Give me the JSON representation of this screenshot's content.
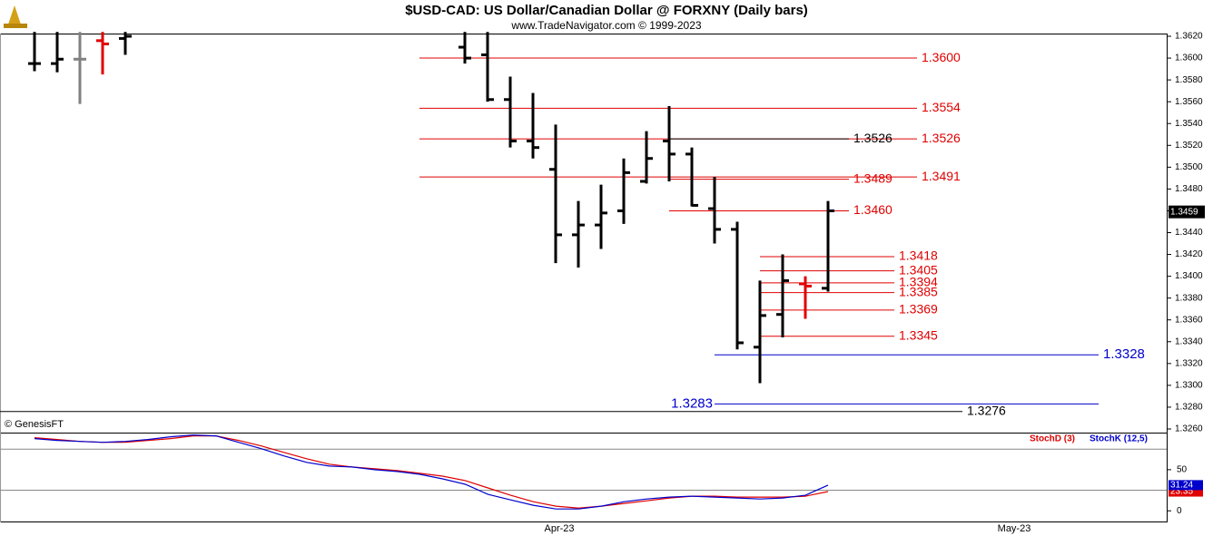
{
  "chart_data": [
    {
      "type": "ohlc",
      "title": "$USD-CAD:  US Dollar/Canadian Dollar @ FORXNY  (Daily bars)",
      "subtitle": "www.TradeNavigator.com © 1999-2023",
      "credit": "© GenesisFT",
      "ylim": [
        1.3257,
        1.3622
      ],
      "yticks": [
        {
          "value": 1.326,
          "label": "1.3260"
        },
        {
          "value": 1.328,
          "label": "1.3280"
        },
        {
          "value": 1.33,
          "label": "1.3300"
        },
        {
          "value": 1.332,
          "label": "1.3320"
        },
        {
          "value": 1.334,
          "label": "1.3340"
        },
        {
          "value": 1.336,
          "label": "1.3360"
        },
        {
          "value": 1.338,
          "label": "1.3380"
        },
        {
          "value": 1.34,
          "label": "1.3400"
        },
        {
          "value": 1.342,
          "label": "1.3420"
        },
        {
          "value": 1.344,
          "label": "1.3440"
        },
        {
          "value": 1.346,
          "label": "1.3460"
        },
        {
          "value": 1.348,
          "label": "1.3480"
        },
        {
          "value": 1.35,
          "label": "1.3500"
        },
        {
          "value": 1.352,
          "label": "1.3520"
        },
        {
          "value": 1.354,
          "label": "1.3540"
        },
        {
          "value": 1.356,
          "label": "1.3560"
        },
        {
          "value": 1.358,
          "label": "1.3580"
        },
        {
          "value": 1.36,
          "label": "1.3600"
        },
        {
          "value": 1.362,
          "label": "1.3620"
        }
      ],
      "last_price": 1.3459,
      "bars": [
        {
          "o": 1.3595,
          "h": 1.3624,
          "l": 1.3588,
          "c": 1.3595,
          "color": "#000000"
        },
        {
          "o": 1.3595,
          "h": 1.3624,
          "l": 1.3587,
          "c": 1.3599,
          "color": "#000000"
        },
        {
          "o": 1.3599,
          "h": 1.3624,
          "l": 1.3558,
          "c": 1.3599,
          "color": "#808080"
        },
        {
          "o": 1.3616,
          "h": 1.3624,
          "l": 1.3585,
          "c": 1.3613,
          "color": "#e00000"
        },
        {
          "o": 1.3618,
          "h": 1.3624,
          "l": 1.3603,
          "c": 1.362,
          "color": "#000000"
        },
        {
          "o": 1.361,
          "h": 1.3624,
          "l": 1.3595,
          "c": 1.36,
          "color": "#000000"
        },
        {
          "o": 1.3603,
          "h": 1.3624,
          "l": 1.356,
          "c": 1.3562,
          "color": "#000000"
        },
        {
          "o": 1.3562,
          "h": 1.3583,
          "l": 1.3518,
          "c": 1.3524,
          "color": "#000000"
        },
        {
          "o": 1.3524,
          "h": 1.3568,
          "l": 1.3508,
          "c": 1.3518,
          "color": "#000000"
        },
        {
          "o": 1.3498,
          "h": 1.3539,
          "l": 1.3412,
          "c": 1.3438,
          "color": "#000000"
        },
        {
          "o": 1.3438,
          "h": 1.3469,
          "l": 1.3408,
          "c": 1.3447,
          "color": "#000000"
        },
        {
          "o": 1.3447,
          "h": 1.3484,
          "l": 1.3425,
          "c": 1.3458,
          "color": "#000000"
        },
        {
          "o": 1.346,
          "h": 1.3508,
          "l": 1.3448,
          "c": 1.3495,
          "color": "#000000"
        },
        {
          "o": 1.3487,
          "h": 1.3533,
          "l": 1.3485,
          "c": 1.3508,
          "color": "#000000"
        },
        {
          "o": 1.3524,
          "h": 1.3556,
          "l": 1.3487,
          "c": 1.3512,
          "color": "#000000"
        },
        {
          "o": 1.3512,
          "h": 1.3518,
          "l": 1.3464,
          "c": 1.3465,
          "color": "#000000"
        },
        {
          "o": 1.3462,
          "h": 1.3491,
          "l": 1.343,
          "c": 1.3443,
          "color": "#000000"
        },
        {
          "o": 1.3443,
          "h": 1.345,
          "l": 1.3333,
          "c": 1.3339,
          "color": "#000000"
        },
        {
          "o": 1.3335,
          "h": 1.3396,
          "l": 1.3302,
          "c": 1.3364,
          "color": "#000000"
        },
        {
          "o": 1.3365,
          "h": 1.342,
          "l": 1.3344,
          "c": 1.3396,
          "color": "#000000"
        },
        {
          "o": 1.3393,
          "h": 1.34,
          "l": 1.3361,
          "c": 1.3391,
          "color": "#e00000"
        },
        {
          "o": 1.3389,
          "h": 1.3469,
          "l": 1.3386,
          "c": 1.346,
          "color": "#000000"
        }
      ],
      "levels": [
        {
          "value": 1.36,
          "label": "1.3600",
          "color": "#e00000"
        },
        {
          "value": 1.3554,
          "label": "1.3554",
          "color": "#e00000"
        },
        {
          "value": 1.3526,
          "label": "1.3526",
          "color": "#e00000"
        },
        {
          "value": 1.3526,
          "label": "1.3526",
          "color": "#000000"
        },
        {
          "value": 1.3491,
          "label": "1.3491",
          "color": "#e00000"
        },
        {
          "value": 1.3489,
          "label": "1.3489",
          "color": "#e00000"
        },
        {
          "value": 1.346,
          "label": "1.3460",
          "color": "#e00000"
        },
        {
          "value": 1.3418,
          "label": "1.3418",
          "color": "#e00000"
        },
        {
          "value": 1.3405,
          "label": "1.3405",
          "color": "#e00000"
        },
        {
          "value": 1.3394,
          "label": "1.3394",
          "color": "#e00000"
        },
        {
          "value": 1.3385,
          "label": "1.3385",
          "color": "#e00000"
        },
        {
          "value": 1.3369,
          "label": "1.3369",
          "color": "#e00000"
        },
        {
          "value": 1.3345,
          "label": "1.3345",
          "color": "#e00000"
        },
        {
          "value": 1.3328,
          "label": "1.3328",
          "color": "#0000cc"
        },
        {
          "value": 1.3283,
          "label": "1.3283",
          "color": "#0000cc"
        },
        {
          "value": 1.3276,
          "label": "1.3276",
          "color": "#000000"
        }
      ]
    },
    {
      "type": "line",
      "ylim": [
        -13,
        94
      ],
      "yticks": [
        0,
        50
      ],
      "hlines": [
        25,
        75
      ],
      "x_labels": [
        "Apr-23",
        "May-23"
      ],
      "series": [
        {
          "name": "StochD (3)",
          "color": "#e00000",
          "values": [
            88.9,
            86.7,
            84.4,
            83.3,
            83.3,
            85.6,
            87.8,
            91.1,
            91.1,
            85.6,
            78.9,
            71.1,
            63.3,
            56.7,
            53.3,
            51.1,
            48.9,
            45.6,
            42.2,
            36.7,
            27.8,
            18.9,
            11.1,
            5.6,
            3.3,
            5.6,
            8.9,
            12.2,
            15.6,
            17.8,
            17.8,
            16.7,
            16.7,
            16.7,
            17.8,
            23.35
          ]
        },
        {
          "name": "StochK (12,5)",
          "color": "#0000cc",
          "values": [
            87.8,
            85.6,
            84.4,
            83.3,
            84.4,
            86.7,
            90,
            92.2,
            91.1,
            83.3,
            75.6,
            66.7,
            58.9,
            54.4,
            53.3,
            50,
            47.8,
            44.4,
            38.9,
            32.2,
            20,
            13.3,
            6.7,
            2.2,
            2.2,
            5.6,
            11.1,
            14.4,
            16.7,
            17.8,
            16.7,
            15.6,
            14.4,
            15.6,
            18.9,
            31.24
          ]
        }
      ]
    }
  ]
}
